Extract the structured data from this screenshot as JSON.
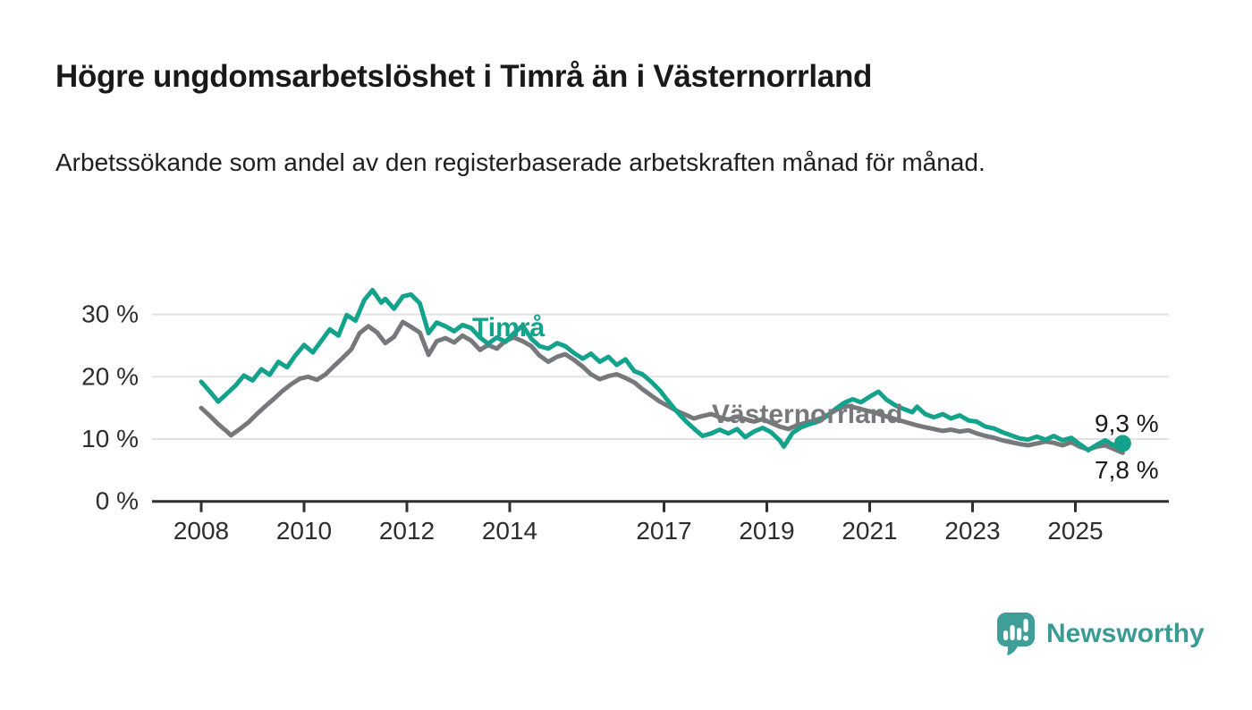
{
  "header": {
    "title": "Högre ungdomsarbetslöshet i Timrå än i Västernorrland",
    "subtitle": "Arbetssökande som andel av den registerbaserade arbetskraften månad för månad."
  },
  "footer": {
    "brand": "Newsworthy"
  },
  "chart_data": {
    "type": "line",
    "title": "Högre ungdomsarbetslöshet i Timrå än i Västernorrland",
    "xlabel": "",
    "ylabel": "",
    "xlim": [
      2007.0,
      2026.8
    ],
    "ylim": [
      0,
      35
    ],
    "grid": "horizontal",
    "legend_position": "inline-labels",
    "colors": {
      "timra": "#13a28c",
      "vasternorrland": "#77787b",
      "grid": "#e2e2e2",
      "axis": "#2f2f2f",
      "tick_text": "#2d2d2d"
    },
    "x_axis": {
      "ticks": [
        {
          "year": 2008,
          "label": "2008"
        },
        {
          "year": 2010,
          "label": "2010"
        },
        {
          "year": 2012,
          "label": "2012"
        },
        {
          "year": 2014,
          "label": "2014"
        },
        {
          "year": 2017,
          "label": "2017"
        },
        {
          "year": 2019,
          "label": "2019"
        },
        {
          "year": 2021,
          "label": "2021"
        },
        {
          "year": 2023,
          "label": "2023"
        },
        {
          "year": 2025,
          "label": "2025"
        }
      ]
    },
    "y_axis": {
      "ticks": [
        {
          "value": 0,
          "label": "0 %"
        },
        {
          "value": 10,
          "label": "10 %"
        },
        {
          "value": 20,
          "label": "20 %"
        },
        {
          "value": 30,
          "label": "30 %"
        }
      ]
    },
    "series": [
      {
        "name": "Timrå",
        "color": "#13a28c",
        "end_label": "9,3 %",
        "end_dot": true,
        "points": [
          [
            2008.0,
            19.2
          ],
          [
            2008.17,
            17.6
          ],
          [
            2008.33,
            16.0
          ],
          [
            2008.5,
            17.3
          ],
          [
            2008.67,
            18.6
          ],
          [
            2008.83,
            20.2
          ],
          [
            2009.0,
            19.4
          ],
          [
            2009.17,
            21.2
          ],
          [
            2009.33,
            20.3
          ],
          [
            2009.5,
            22.4
          ],
          [
            2009.67,
            21.5
          ],
          [
            2009.83,
            23.4
          ],
          [
            2010.0,
            25.1
          ],
          [
            2010.17,
            23.9
          ],
          [
            2010.33,
            25.7
          ],
          [
            2010.5,
            27.6
          ],
          [
            2010.67,
            26.6
          ],
          [
            2010.83,
            29.9
          ],
          [
            2011.0,
            29.0
          ],
          [
            2011.17,
            32.3
          ],
          [
            2011.33,
            33.9
          ],
          [
            2011.5,
            31.9
          ],
          [
            2011.58,
            32.5
          ],
          [
            2011.75,
            30.9
          ],
          [
            2011.92,
            32.9
          ],
          [
            2012.08,
            33.2
          ],
          [
            2012.25,
            31.8
          ],
          [
            2012.42,
            27.0
          ],
          [
            2012.58,
            28.7
          ],
          [
            2012.75,
            28.1
          ],
          [
            2012.92,
            27.3
          ],
          [
            2013.08,
            28.3
          ],
          [
            2013.25,
            27.8
          ],
          [
            2013.42,
            26.3
          ],
          [
            2013.58,
            25.3
          ],
          [
            2013.75,
            26.3
          ],
          [
            2013.92,
            25.6
          ],
          [
            2014.08,
            27.0
          ],
          [
            2014.25,
            28.2
          ],
          [
            2014.42,
            26.1
          ],
          [
            2014.58,
            24.9
          ],
          [
            2014.75,
            24.5
          ],
          [
            2014.92,
            25.4
          ],
          [
            2015.08,
            24.9
          ],
          [
            2015.25,
            23.8
          ],
          [
            2015.42,
            22.9
          ],
          [
            2015.58,
            23.7
          ],
          [
            2015.75,
            22.4
          ],
          [
            2015.92,
            23.2
          ],
          [
            2016.08,
            21.9
          ],
          [
            2016.25,
            22.8
          ],
          [
            2016.42,
            20.9
          ],
          [
            2016.58,
            20.4
          ],
          [
            2016.75,
            19.2
          ],
          [
            2016.92,
            17.8
          ],
          [
            2017.08,
            16.1
          ],
          [
            2017.25,
            14.4
          ],
          [
            2017.42,
            12.9
          ],
          [
            2017.58,
            11.7
          ],
          [
            2017.75,
            10.5
          ],
          [
            2017.92,
            10.9
          ],
          [
            2018.08,
            11.5
          ],
          [
            2018.25,
            10.9
          ],
          [
            2018.42,
            11.6
          ],
          [
            2018.58,
            10.3
          ],
          [
            2018.75,
            11.2
          ],
          [
            2018.92,
            11.8
          ],
          [
            2019.08,
            11.1
          ],
          [
            2019.25,
            9.8
          ],
          [
            2019.33,
            8.8
          ],
          [
            2019.5,
            11.0
          ],
          [
            2019.67,
            11.9
          ],
          [
            2019.83,
            12.4
          ],
          [
            2020.0,
            12.8
          ],
          [
            2020.17,
            13.7
          ],
          [
            2020.33,
            14.8
          ],
          [
            2020.5,
            15.8
          ],
          [
            2020.67,
            16.4
          ],
          [
            2020.83,
            15.9
          ],
          [
            2021.0,
            16.8
          ],
          [
            2021.17,
            17.6
          ],
          [
            2021.33,
            16.3
          ],
          [
            2021.5,
            15.4
          ],
          [
            2021.67,
            14.8
          ],
          [
            2021.83,
            14.3
          ],
          [
            2021.92,
            15.2
          ],
          [
            2022.08,
            14.0
          ],
          [
            2022.25,
            13.5
          ],
          [
            2022.42,
            14.0
          ],
          [
            2022.58,
            13.3
          ],
          [
            2022.75,
            13.8
          ],
          [
            2022.92,
            13.0
          ],
          [
            2023.08,
            12.8
          ],
          [
            2023.25,
            12.0
          ],
          [
            2023.42,
            11.7
          ],
          [
            2023.58,
            11.1
          ],
          [
            2023.75,
            10.6
          ],
          [
            2023.92,
            10.1
          ],
          [
            2024.08,
            9.9
          ],
          [
            2024.25,
            10.4
          ],
          [
            2024.42,
            9.9
          ],
          [
            2024.58,
            10.5
          ],
          [
            2024.75,
            9.8
          ],
          [
            2024.92,
            10.2
          ],
          [
            2025.08,
            9.2
          ],
          [
            2025.25,
            8.2
          ],
          [
            2025.42,
            9.1
          ],
          [
            2025.58,
            9.8
          ],
          [
            2025.75,
            9.0
          ],
          [
            2025.92,
            9.3
          ]
        ]
      },
      {
        "name": "Västernorrland",
        "color": "#77787b",
        "end_label": "7,8 %",
        "end_dot": false,
        "points": [
          [
            2008.0,
            15.0
          ],
          [
            2008.17,
            13.7
          ],
          [
            2008.33,
            12.4
          ],
          [
            2008.5,
            11.2
          ],
          [
            2008.58,
            10.6
          ],
          [
            2008.75,
            11.6
          ],
          [
            2008.92,
            12.7
          ],
          [
            2009.08,
            14.0
          ],
          [
            2009.25,
            15.3
          ],
          [
            2009.42,
            16.5
          ],
          [
            2009.58,
            17.7
          ],
          [
            2009.75,
            18.8
          ],
          [
            2009.92,
            19.7
          ],
          [
            2010.08,
            20.0
          ],
          [
            2010.25,
            19.5
          ],
          [
            2010.42,
            20.4
          ],
          [
            2010.58,
            21.7
          ],
          [
            2010.75,
            23.0
          ],
          [
            2010.92,
            24.4
          ],
          [
            2011.08,
            27.0
          ],
          [
            2011.25,
            28.1
          ],
          [
            2011.42,
            27.1
          ],
          [
            2011.58,
            25.4
          ],
          [
            2011.75,
            26.4
          ],
          [
            2011.92,
            28.8
          ],
          [
            2012.08,
            28.0
          ],
          [
            2012.25,
            27.1
          ],
          [
            2012.42,
            23.5
          ],
          [
            2012.58,
            25.7
          ],
          [
            2012.75,
            26.2
          ],
          [
            2012.92,
            25.5
          ],
          [
            2013.08,
            26.6
          ],
          [
            2013.25,
            25.8
          ],
          [
            2013.42,
            24.3
          ],
          [
            2013.58,
            25.1
          ],
          [
            2013.75,
            24.5
          ],
          [
            2013.92,
            25.8
          ],
          [
            2014.08,
            26.3
          ],
          [
            2014.25,
            25.7
          ],
          [
            2014.42,
            24.9
          ],
          [
            2014.58,
            23.4
          ],
          [
            2014.75,
            22.4
          ],
          [
            2014.92,
            23.2
          ],
          [
            2015.08,
            23.6
          ],
          [
            2015.25,
            22.7
          ],
          [
            2015.42,
            21.6
          ],
          [
            2015.58,
            20.4
          ],
          [
            2015.75,
            19.6
          ],
          [
            2015.92,
            20.1
          ],
          [
            2016.08,
            20.4
          ],
          [
            2016.25,
            19.8
          ],
          [
            2016.42,
            19.1
          ],
          [
            2016.58,
            18.0
          ],
          [
            2016.75,
            17.0
          ],
          [
            2016.92,
            16.0
          ],
          [
            2017.08,
            15.3
          ],
          [
            2017.25,
            14.5
          ],
          [
            2017.42,
            13.9
          ],
          [
            2017.58,
            13.3
          ],
          [
            2017.75,
            13.7
          ],
          [
            2017.92,
            14.0
          ],
          [
            2018.08,
            13.5
          ],
          [
            2018.25,
            13.1
          ],
          [
            2018.42,
            13.6
          ],
          [
            2018.58,
            13.2
          ],
          [
            2018.75,
            12.8
          ],
          [
            2018.92,
            13.2
          ],
          [
            2019.08,
            12.6
          ],
          [
            2019.25,
            12.0
          ],
          [
            2019.42,
            11.6
          ],
          [
            2019.58,
            12.2
          ],
          [
            2019.75,
            12.6
          ],
          [
            2019.92,
            13.0
          ],
          [
            2020.08,
            13.4
          ],
          [
            2020.25,
            14.2
          ],
          [
            2020.42,
            15.0
          ],
          [
            2020.58,
            15.3
          ],
          [
            2020.75,
            15.0
          ],
          [
            2020.92,
            14.6
          ],
          [
            2021.08,
            14.3
          ],
          [
            2021.25,
            13.8
          ],
          [
            2021.42,
            13.4
          ],
          [
            2021.58,
            13.0
          ],
          [
            2021.75,
            12.6
          ],
          [
            2021.92,
            12.2
          ],
          [
            2022.08,
            11.9
          ],
          [
            2022.25,
            11.6
          ],
          [
            2022.42,
            11.3
          ],
          [
            2022.58,
            11.5
          ],
          [
            2022.75,
            11.2
          ],
          [
            2022.92,
            11.4
          ],
          [
            2023.08,
            10.9
          ],
          [
            2023.25,
            10.5
          ],
          [
            2023.42,
            10.2
          ],
          [
            2023.58,
            9.8
          ],
          [
            2023.75,
            9.5
          ],
          [
            2023.92,
            9.2
          ],
          [
            2024.08,
            9.0
          ],
          [
            2024.25,
            9.3
          ],
          [
            2024.42,
            9.6
          ],
          [
            2024.58,
            9.4
          ],
          [
            2024.75,
            9.0
          ],
          [
            2024.92,
            9.5
          ],
          [
            2025.08,
            8.8
          ],
          [
            2025.25,
            8.3
          ],
          [
            2025.42,
            8.8
          ],
          [
            2025.58,
            9.0
          ],
          [
            2025.75,
            8.4
          ],
          [
            2025.92,
            7.8
          ]
        ]
      }
    ]
  }
}
